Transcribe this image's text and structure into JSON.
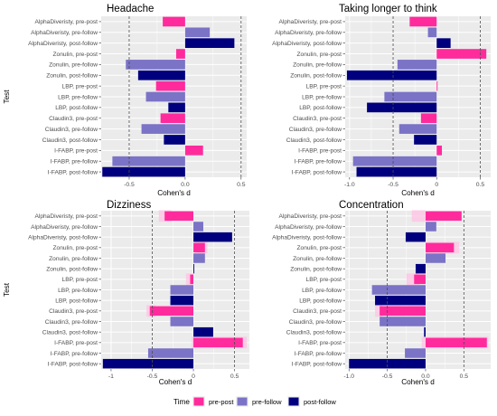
{
  "chart_data": [
    {
      "type": "bar",
      "title": "Headache",
      "xlabel": "Cohen's d",
      "ylabel": "Test",
      "xlim": [
        -0.75,
        0.55
      ],
      "xticks": [
        -0.5,
        0.0,
        0.5
      ],
      "xtick_labels": [
        "-0.5",
        "0.0",
        "0.5"
      ],
      "reference_lines": [
        -0.5,
        0.5
      ],
      "categories": [
        "AlphaDiveristy, pre-post",
        "AlphaDiveristy, pre-follow",
        "AlphaDiveristy, post-follow",
        "Zonulin, pre-post",
        "Zonulin, pre-follow",
        "Zonulin, post-follow",
        "LBP, pre-post",
        "LBP, pre-follow",
        "LBP, post-follow",
        "Claudin3, pre-post",
        "Claudin3, pre-follow",
        "Claudin3, post-follow",
        "I-FABP, pre-post",
        "I-FABP, pre-follow",
        "I-FABP, post-follow"
      ],
      "values": [
        -0.2,
        0.22,
        0.44,
        -0.08,
        -0.53,
        -0.42,
        -0.26,
        -0.35,
        -0.15,
        -0.22,
        -0.39,
        -0.19,
        0.16,
        -0.65,
        -0.74
      ],
      "groups": [
        "pre-post",
        "pre-follow",
        "post-follow",
        "pre-post",
        "pre-follow",
        "post-follow",
        "pre-post",
        "pre-follow",
        "post-follow",
        "pre-post",
        "pre-follow",
        "post-follow",
        "pre-post",
        "pre-follow",
        "post-follow"
      ],
      "bands": []
    },
    {
      "type": "bar",
      "title": "Taking longer to think",
      "xlabel": "Cohen's d",
      "ylabel": "",
      "xlim": [
        -1.05,
        0.62
      ],
      "xticks": [
        -1.0,
        -0.5,
        0.0,
        0.5
      ],
      "xtick_labels": [
        "-1.0",
        "-0.5",
        "0",
        "0.5"
      ],
      "reference_lines": [
        -0.5,
        0.5
      ],
      "categories": [
        "AlphaDiveristy, pre-post",
        "AlphaDiveristy, pre-follow",
        "AlphaDiveristy, post-follow",
        "Zonulin, pre-post",
        "Zonulin, pre-follow",
        "Zonulin, post-follow",
        "LBP, pre-post",
        "LBP, pre-follow",
        "LBP, post-follow",
        "Claudin3, pre-post",
        "Claudin3, pre-follow",
        "Claudin3, post-follow",
        "I-FABP, pre-post",
        "I-FABP, pre-follow",
        "I-FABP, post-follow"
      ],
      "values": [
        -0.31,
        -0.1,
        0.16,
        0.57,
        -0.45,
        -1.03,
        0.01,
        -0.6,
        -0.8,
        -0.18,
        -0.43,
        -0.26,
        0.06,
        -0.96,
        -0.92
      ],
      "groups": [
        "pre-post",
        "pre-follow",
        "post-follow",
        "pre-post",
        "pre-follow",
        "post-follow",
        "pre-post",
        "pre-follow",
        "post-follow",
        "pre-post",
        "pre-follow",
        "post-follow",
        "pre-post",
        "pre-follow",
        "post-follow"
      ],
      "bands": []
    },
    {
      "type": "bar",
      "title": "Dizziness",
      "xlabel": "Cohen's d",
      "ylabel": "Test",
      "xlim": [
        -1.12,
        0.68
      ],
      "xticks": [
        -1.0,
        -0.5,
        0.0,
        0.5
      ],
      "xtick_labels": [
        "-1",
        "-0.5",
        "0",
        "0.5"
      ],
      "reference_lines": [
        -0.5,
        0.5
      ],
      "categories": [
        "AlphaDiveristy, pre-post",
        "AlphaDiveristy, pre-follow",
        "AlphaDiveristy, post-follow",
        "Zonulin, pre-post",
        "Zonulin, pre-follow",
        "Zonulin, post-follow",
        "LBP, pre-post",
        "LBP, pre-follow",
        "LBP, post-follow",
        "Claudin3, pre-post",
        "Claudin3, pre-follow",
        "Claudin3, post-follow",
        "I-FABP, pre-post",
        "I-FABP, pre-follow",
        "I-FABP, post-follow"
      ],
      "values": [
        -0.35,
        0.12,
        0.47,
        0.14,
        0.14,
        0.01,
        -0.04,
        -0.28,
        -0.28,
        -0.53,
        -0.28,
        0.24,
        0.6,
        -0.55,
        -1.1
      ],
      "groups": [
        "pre-post",
        "pre-follow",
        "post-follow",
        "pre-post",
        "pre-follow",
        "post-follow",
        "pre-post",
        "pre-follow",
        "post-follow",
        "pre-post",
        "pre-follow",
        "post-follow",
        "pre-post",
        "pre-follow",
        "post-follow"
      ],
      "bands": [
        [
          0,
          -0.42,
          -0.27
        ],
        [
          3,
          0.02,
          0.17
        ],
        [
          6,
          -0.09,
          0.0
        ],
        [
          9,
          -0.57,
          -0.46
        ],
        [
          12,
          -0.02,
          0.65
        ]
      ]
    },
    {
      "type": "bar",
      "title": "Concentration",
      "xlabel": "Cohen's d",
      "ylabel": "",
      "xlim": [
        -1.05,
        0.85
      ],
      "xticks": [
        -1.0,
        -0.5,
        0.0,
        0.5
      ],
      "xtick_labels": [
        "-1.0",
        "-0.5",
        "0.0",
        "0.5"
      ],
      "reference_lines": [
        -0.5,
        0.5
      ],
      "categories": [
        "AlphaDiveristy, pre-post",
        "AlphaDiveristy, pre-follow",
        "AlphaDiveristy, post-follow",
        "Zonulin, pre-post",
        "Zonulin, pre-follow",
        "Zonulin, post-follow",
        "LBP, pre-post",
        "LBP, pre-follow",
        "LBP, post-follow",
        "Claudin3, pre-post",
        "Claudin3, pre-follow",
        "Claudin3, post-follow",
        "I-FABP, pre-post",
        "I-FABP, pre-follow",
        "I-FABP, post-follow"
      ],
      "values": [
        0.47,
        0.14,
        -0.26,
        0.37,
        0.26,
        -0.13,
        -0.15,
        -0.7,
        -0.66,
        -0.6,
        -0.6,
        -0.02,
        0.8,
        -0.27,
        -1.0
      ],
      "groups": [
        "pre-post",
        "pre-follow",
        "post-follow",
        "pre-post",
        "pre-follow",
        "post-follow",
        "pre-post",
        "pre-follow",
        "post-follow",
        "pre-post",
        "pre-follow",
        "post-follow",
        "pre-post",
        "pre-follow",
        "post-follow"
      ],
      "bands": [
        [
          0,
          -0.18,
          0.0
        ],
        [
          3,
          0.0,
          0.44
        ],
        [
          6,
          -0.25,
          -0.08
        ],
        [
          9,
          -0.66,
          -0.56
        ],
        [
          12,
          -0.05,
          0.82
        ]
      ]
    }
  ],
  "legend": {
    "title": "Time",
    "items": [
      {
        "label": "pre-post",
        "color": "#ff2b9c"
      },
      {
        "label": "pre-follow",
        "color": "#7b73c6"
      },
      {
        "label": "post-follow",
        "color": "#00007f"
      }
    ]
  },
  "colors": {
    "panel_bg": "#ebebeb",
    "grid": "#ffffff",
    "band": "#ffc1e3",
    "ref_line": "#4d4d4d"
  }
}
